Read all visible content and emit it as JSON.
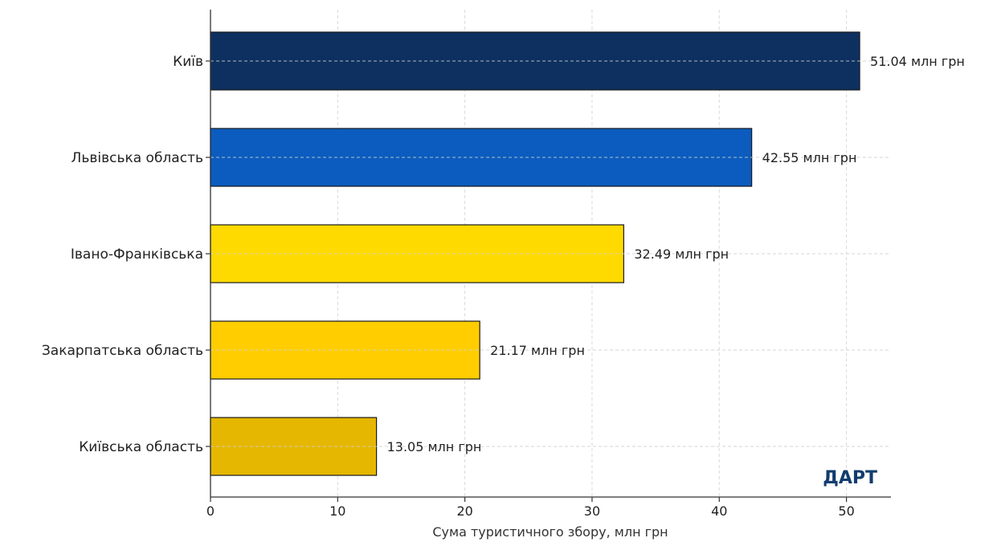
{
  "chart_data": {
    "type": "bar",
    "orientation": "horizontal",
    "categories": [
      "Київ",
      "Львівська область",
      "Івано-Франківська",
      "Закарпатська область",
      "Київська область"
    ],
    "values": [
      51.04,
      42.55,
      32.49,
      21.17,
      13.05
    ],
    "value_labels": [
      "51.04 млн грн",
      "42.55 млн грн",
      "32.49 млн грн",
      "21.17 млн грн",
      "13.05 млн грн"
    ],
    "bar_colors": [
      "#0d3060",
      "#0b5cbe",
      "#ffda00",
      "#ffcd00",
      "#e5b700"
    ],
    "xlabel": "Сума туристичного збору, млн грн",
    "ylabel": "",
    "xlim": [
      0,
      53.5
    ],
    "xticks": [
      0,
      10,
      20,
      30,
      40,
      50
    ],
    "grid": true,
    "grid_style": "dashed"
  },
  "brand": "ДАРТ"
}
